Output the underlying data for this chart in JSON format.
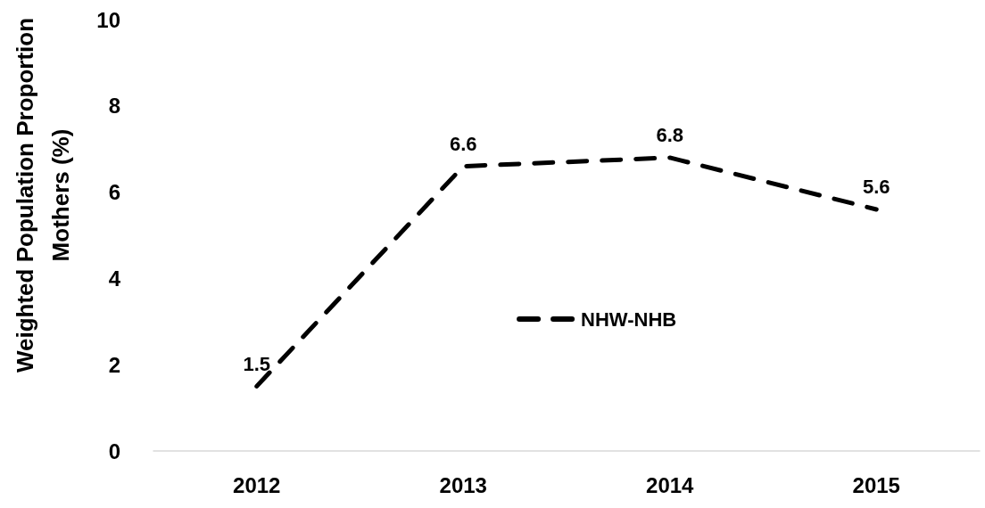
{
  "chart_data": {
    "type": "line",
    "ylabel": "Weighted Population Proportion Mothers (%)",
    "categories": [
      "2012",
      "2013",
      "2014",
      "2015"
    ],
    "series": [
      {
        "name": "NHW-NHB",
        "color": "#000000",
        "values": [
          1.5,
          6.6,
          6.8,
          5.6
        ]
      }
    ],
    "ylim": [
      0,
      10
    ],
    "yticks": [
      0,
      2,
      4,
      6,
      8,
      10
    ],
    "grid": false,
    "legend": "center",
    "marker": "none",
    "line_style": "dashed",
    "data_labels": true
  }
}
